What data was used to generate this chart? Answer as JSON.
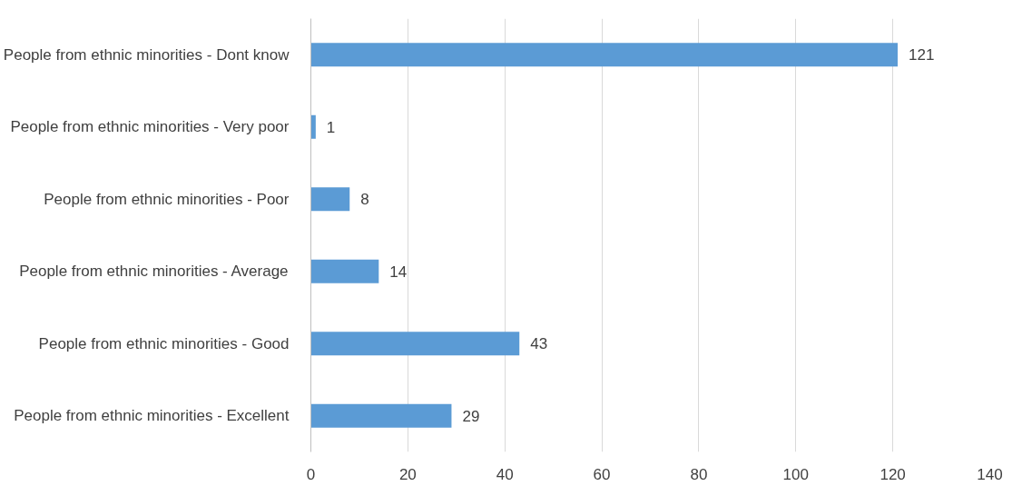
{
  "chart_data": {
    "type": "bar",
    "orientation": "horizontal",
    "categories": [
      "People from ethnic minorities - Dont know",
      "People from ethnic minorities - Very poor",
      "People from ethnic minorities - Poor",
      "People from ethnic minorities - Average",
      "People from ethnic minorities - Good",
      "People from ethnic minorities - Excellent"
    ],
    "values": [
      121,
      1,
      8,
      14,
      43,
      29
    ],
    "color": "#5b9bd5",
    "xlim": [
      0,
      140
    ],
    "xticks": [
      0,
      20,
      40,
      60,
      80,
      100,
      120,
      140
    ],
    "grid": "x",
    "data_labels": true
  }
}
